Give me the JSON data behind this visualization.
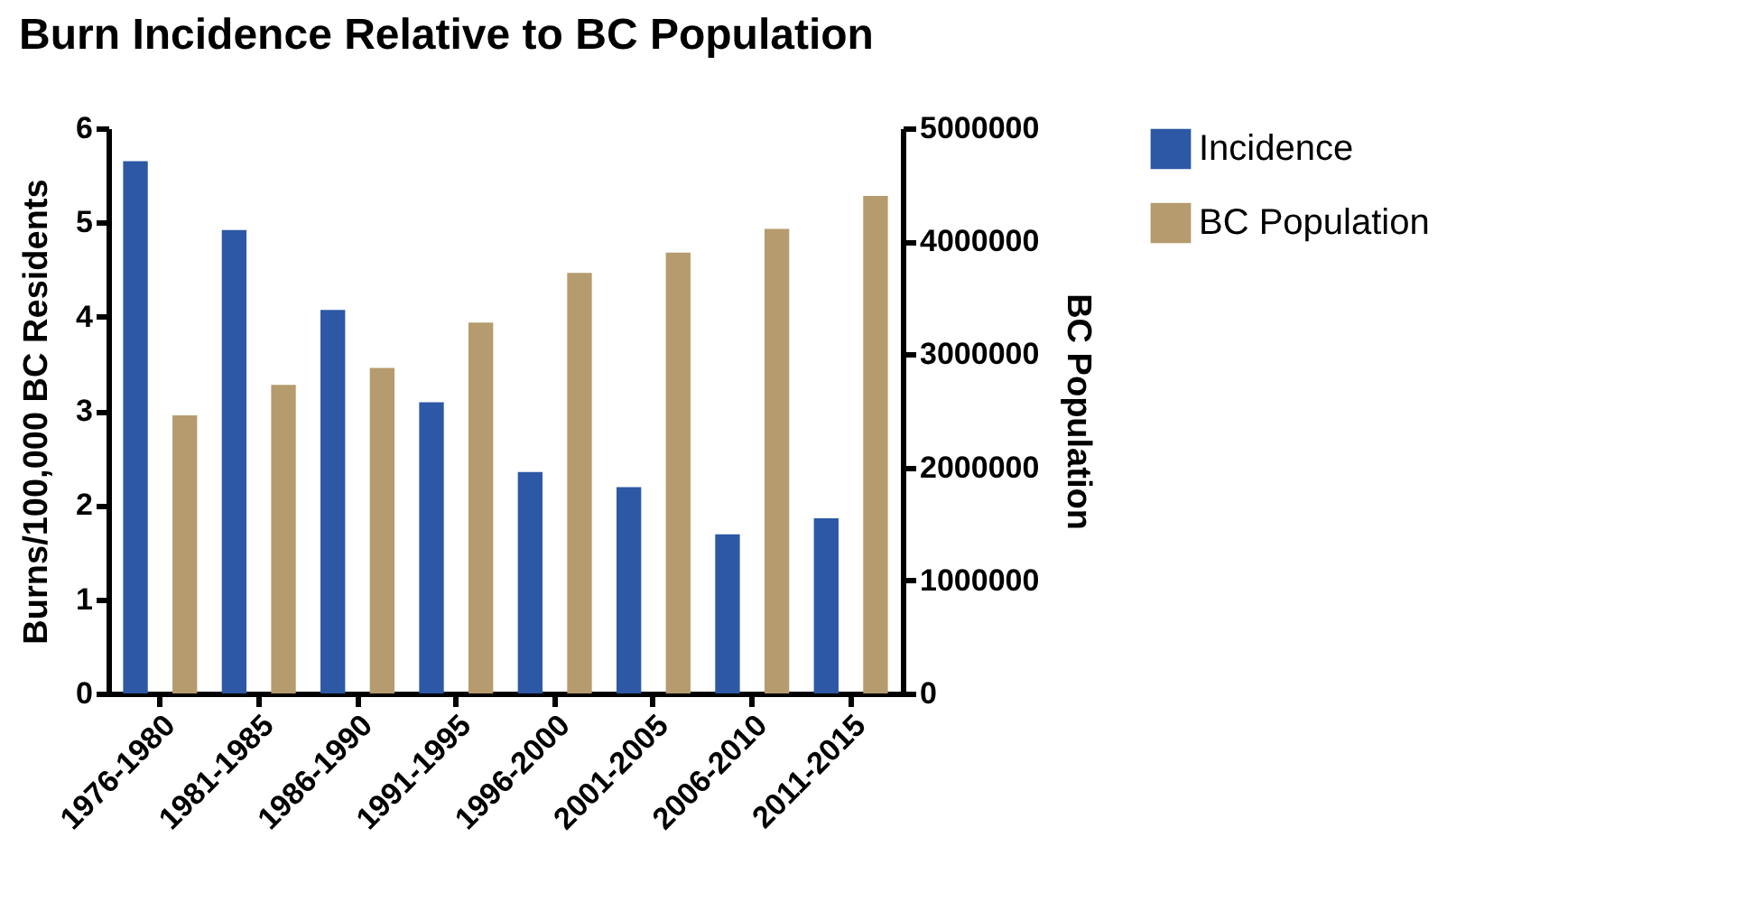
{
  "chart_data": {
    "type": "bar",
    "title": "Burn Incidence Relative to BC Population",
    "ylabel": "Burns/100,000 BC Residents",
    "y2label": "BC Population",
    "categories": [
      "1976-1980",
      "1981-1985",
      "1986-1990",
      "1991-1995",
      "1996-2000",
      "2001-2005",
      "2006-2010",
      "2011-2015"
    ],
    "series": [
      {
        "name": "Incidence",
        "color": "#2d58a5",
        "values": [
          5.65,
          4.92,
          4.07,
          3.09,
          2.35,
          2.19,
          1.69,
          1.86
        ]
      },
      {
        "name": "BC Population",
        "color": "#b59b6d",
        "axis": "y2",
        "values": [
          2460000,
          2730000,
          2880000,
          3280000,
          3720000,
          3900000,
          4110000,
          4400000
        ]
      }
    ],
    "ylim": [
      0,
      6
    ],
    "yticks": [
      0,
      1,
      2,
      3,
      4,
      5,
      6
    ],
    "y2lim": [
      0,
      5000000
    ],
    "y2ticks": [
      0,
      1000000,
      2000000,
      3000000,
      4000000,
      5000000
    ],
    "grid": false,
    "legend": "right"
  }
}
